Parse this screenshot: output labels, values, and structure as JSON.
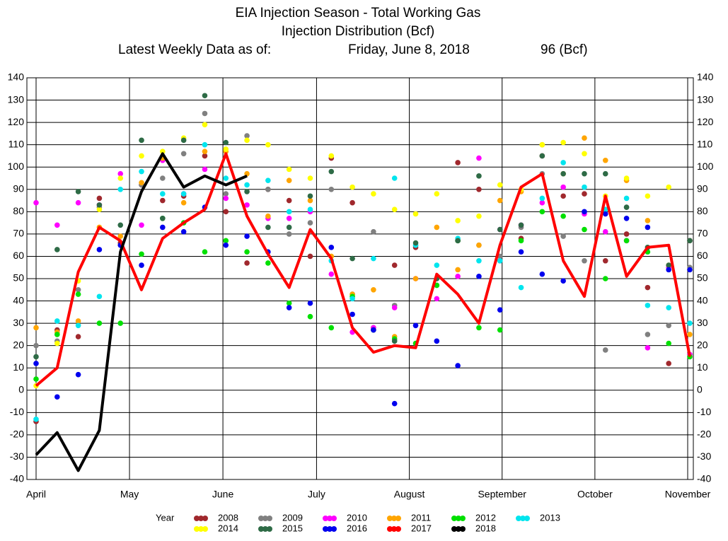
{
  "chart_data": {
    "type": "scatter-line",
    "title": "EIA Injection Season - Total Working Gas",
    "subtitle": "Injection Distribution (Bcf)",
    "latest_label": "Latest Weekly Data as of:",
    "latest_date": "Friday, June 8, 2018",
    "latest_value": "96 (Bcf)",
    "legend_title": "Year",
    "categories": [
      null,
      null,
      null,
      null,
      null,
      null,
      null,
      null,
      null,
      null,
      null,
      null,
      null,
      null,
      null,
      null,
      null,
      null,
      null,
      null,
      null,
      null,
      null,
      null,
      null,
      null,
      null,
      null,
      null,
      null,
      null,
      null
    ],
    "xlim": [
      0,
      31
    ],
    "xticks": [
      {
        "value": 0,
        "label": "April"
      },
      {
        "value": 4.43,
        "label": "May"
      },
      {
        "value": 8.86,
        "label": "June"
      },
      {
        "value": 13.3,
        "label": "July"
      },
      {
        "value": 17.7,
        "label": "August"
      },
      {
        "value": 22.1,
        "label": "September"
      },
      {
        "value": 26.5,
        "label": "October"
      },
      {
        "value": 30.9,
        "label": "November"
      }
    ],
    "ylim": [
      -40,
      140
    ],
    "yticks": [
      -40,
      -30,
      -20,
      -10,
      0,
      10,
      20,
      30,
      40,
      50,
      60,
      70,
      80,
      90,
      100,
      110,
      120,
      130,
      140
    ],
    "y2lim": [
      -40,
      140
    ],
    "grid": true,
    "series": [
      {
        "name": "2008",
        "color": "#a0282d",
        "mode": "markers",
        "values": [
          -14,
          27,
          24,
          86,
          66,
          92,
          85,
          87,
          105,
          80,
          57,
          90,
          85,
          60,
          104,
          84,
          28,
          56,
          64,
          50,
          102,
          90,
          58,
          68,
          105,
          87,
          88,
          58,
          70,
          46,
          12,
          67
        ]
      },
      {
        "name": "2009",
        "color": "#808080",
        "mode": "markers",
        "values": [
          20,
          22,
          45,
          82,
          65,
          92,
          95,
          106,
          124,
          88,
          114,
          90,
          70,
          75,
          90,
          43,
          71,
          38,
          65,
          47,
          67,
          65,
          60,
          73,
          97,
          69,
          58,
          18,
          82,
          25,
          29,
          55
        ]
      },
      {
        "name": "2010",
        "color": "#ff00ff",
        "mode": "markers",
        "values": [
          84,
          74,
          84,
          83,
          97,
          74,
          103,
          88,
          99,
          86,
          83,
          77,
          77,
          80,
          52,
          26,
          28,
          37,
          50,
          41,
          51,
          104,
          72,
          74,
          84,
          91,
          79,
          71,
          67,
          19,
          55,
          16
        ]
      },
      {
        "name": "2011",
        "color": "#ffa500",
        "mode": "markers",
        "values": [
          28,
          26,
          31,
          73,
          69,
          93,
          104,
          84,
          107,
          107,
          97,
          78,
          94,
          85,
          60,
          43,
          45,
          24,
          50,
          73,
          54,
          65,
          85,
          89,
          110,
          97,
          113,
          103,
          94,
          76,
          56,
          25
        ]
      },
      {
        "name": "2012",
        "color": "#00e000",
        "mode": "markers",
        "values": [
          5,
          25,
          43,
          30,
          30,
          61,
          77,
          75,
          62,
          67,
          62,
          57,
          39,
          33,
          28,
          42,
          27,
          23,
          21,
          47,
          67,
          28,
          27,
          67,
          80,
          78,
          72,
          50,
          67,
          62,
          21,
          15
        ]
      },
      {
        "name": "2013",
        "color": "#00e5ee",
        "mode": "markers",
        "values": [
          -13,
          31,
          29,
          42,
          90,
          98,
          88,
          88,
          110,
          95,
          92,
          94,
          80,
          81,
          58,
          41,
          59,
          95,
          65,
          56,
          68,
          58,
          58,
          46,
          86,
          102,
          91,
          81,
          86,
          38,
          37,
          30
        ]
      },
      {
        "name": "2014",
        "color": "#ffff00",
        "mode": "markers",
        "values": [
          2,
          21,
          49,
          81,
          95,
          105,
          107,
          113,
          119,
          108,
          112,
          110,
          99,
          95,
          105,
          91,
          88,
          81,
          79,
          88,
          76,
          78,
          92,
          90,
          110,
          111,
          106,
          87,
          95,
          87,
          91,
          54
        ]
      },
      {
        "name": "2015",
        "color": "#2e6b46",
        "mode": "markers",
        "values": [
          15,
          63,
          89,
          83,
          74,
          112,
          77,
          112,
          132,
          111,
          89,
          73,
          73,
          87,
          98,
          59,
          27,
          22,
          66,
          50,
          67,
          96,
          72,
          74,
          105,
          97,
          97,
          97,
          82,
          64,
          56,
          67
        ]
      },
      {
        "name": "2016",
        "color": "#0000ee",
        "mode": "markers",
        "values": [
          12,
          -3,
          7,
          63,
          65,
          56,
          73,
          71,
          82,
          65,
          69,
          62,
          37,
          39,
          64,
          34,
          27,
          -6,
          29,
          22,
          11,
          51,
          36,
          62,
          52,
          49,
          80,
          79,
          77,
          73,
          54,
          54
        ]
      },
      {
        "name": "2017",
        "color": "#ff0000",
        "mode": "line",
        "values": [
          2,
          10,
          53,
          73,
          67,
          45,
          68,
          75,
          81,
          106,
          78,
          61,
          46,
          72,
          59,
          28,
          17,
          20,
          19,
          52,
          43,
          30,
          65,
          91,
          97,
          58,
          42,
          87,
          51,
          64,
          65,
          15
        ]
      },
      {
        "name": "2018",
        "color": "#000000",
        "mode": "line",
        "values": [
          -29,
          -19,
          -36,
          -18,
          62,
          89,
          106,
          91,
          96,
          92,
          96,
          null,
          null,
          null,
          null,
          null,
          null,
          null,
          null,
          null,
          null,
          null,
          null,
          null,
          null,
          null,
          null,
          null,
          null,
          null,
          null,
          null
        ]
      }
    ]
  }
}
